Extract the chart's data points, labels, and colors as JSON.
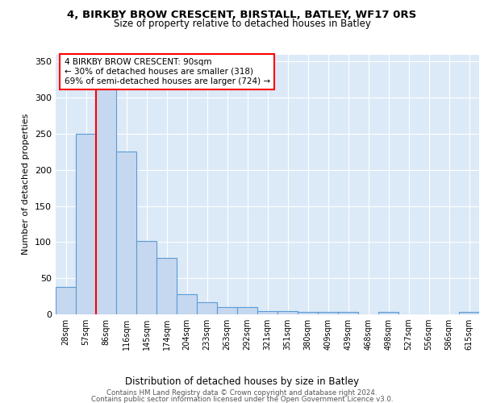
{
  "title1": "4, BIRKBY BROW CRESCENT, BIRSTALL, BATLEY, WF17 0RS",
  "title2": "Size of property relative to detached houses in Batley",
  "xlabel": "Distribution of detached houses by size in Batley",
  "ylabel": "Number of detached properties",
  "categories": [
    "28sqm",
    "57sqm",
    "86sqm",
    "116sqm",
    "145sqm",
    "174sqm",
    "204sqm",
    "233sqm",
    "263sqm",
    "292sqm",
    "321sqm",
    "351sqm",
    "380sqm",
    "409sqm",
    "439sqm",
    "468sqm",
    "498sqm",
    "527sqm",
    "556sqm",
    "586sqm",
    "615sqm"
  ],
  "values": [
    38,
    250,
    330,
    225,
    102,
    78,
    28,
    17,
    10,
    10,
    4,
    4,
    3,
    3,
    3,
    0,
    3,
    0,
    0,
    0,
    3
  ],
  "bar_color": "#c5d8f0",
  "bar_edge_color": "#5b9bd5",
  "redline_x": 1.5,
  "annotation_title": "4 BIRKBY BROW CRESCENT: 90sqm",
  "annotation_line1": "← 30% of detached houses are smaller (318)",
  "annotation_line2": "69% of semi-detached houses are larger (724) →",
  "footer1": "Contains HM Land Registry data © Crown copyright and database right 2024.",
  "footer2": "Contains public sector information licensed under the Open Government Licence v3.0.",
  "bg_color": "#ffffff",
  "plot_bg_color": "#dce9f7",
  "grid_color": "#ffffff",
  "ylim": [
    0,
    360
  ],
  "yticks": [
    0,
    50,
    100,
    150,
    200,
    250,
    300,
    350
  ]
}
